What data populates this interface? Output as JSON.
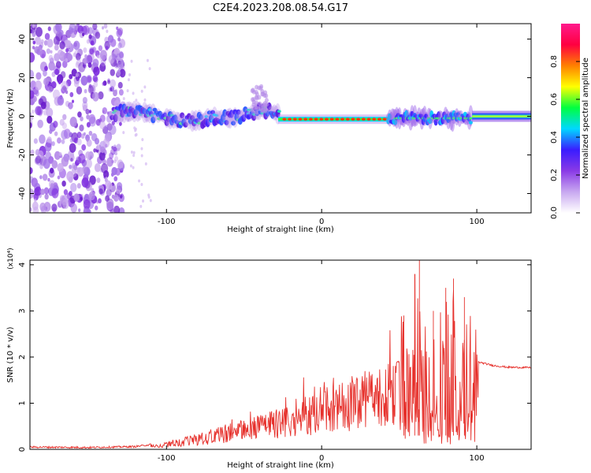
{
  "title": "C2E4.2023.208.08.54.G17",
  "chart_data": [
    {
      "type": "heatmap",
      "xlabel": "Height of straight line (km)",
      "ylabel": "Frequency (Hz)",
      "xlim": [
        -188,
        135
      ],
      "ylim": [
        -50,
        48
      ],
      "x_ticks": [
        -100,
        0,
        100
      ],
      "y_ticks": [
        -40,
        -20,
        0,
        20,
        40
      ],
      "colorbar": {
        "label": "Normalized spectral amplitude",
        "range": [
          0,
          1
        ],
        "ticks": [
          "0.0",
          "0.2",
          "0.4",
          "0.6",
          "0.8"
        ],
        "colors": [
          "#ffffff",
          "#c8a8f0",
          "#8a3ae6",
          "#3a1cff",
          "#00d8ff",
          "#00ff40",
          "#ffff00",
          "#ff8000",
          "#ff0040",
          "#ff1a8c"
        ]
      },
      "features": [
        {
          "name": "noise-scatter",
          "x_range": [
            -188,
            -128
          ],
          "freq_range": [
            -50,
            48
          ]
        },
        {
          "name": "wavy-band",
          "x_range": [
            -135,
            -28
          ],
          "freq_center": [
            -3,
            3
          ]
        },
        {
          "name": "rising-branch",
          "x_range": [
            -45,
            -35
          ],
          "freq_range": [
            0,
            18
          ]
        },
        {
          "name": "narrow-line",
          "x_range": [
            -28,
            43
          ],
          "freq": -1.5
        },
        {
          "name": "noisy-segment",
          "x_range": [
            43,
            97
          ],
          "freq": -1
        },
        {
          "name": "steady-line",
          "x_range": [
            97,
            135
          ],
          "freq": 0
        }
      ]
    },
    {
      "type": "line",
      "xlabel": "Height of straight line (km)",
      "ylabel": "SNR (10 * v/v)",
      "y_scale_label": "(x10⁴)",
      "xlim": [
        -188,
        135
      ],
      "ylim": [
        0,
        4.1
      ],
      "x_ticks": [
        -100,
        0,
        100
      ],
      "y_ticks": [
        0,
        1,
        2,
        3,
        4
      ],
      "series": [
        {
          "name": "SNR",
          "color": "#e6302b",
          "x": [
            -188,
            -150,
            -120,
            -100,
            -80,
            -60,
            -40,
            -20,
            0,
            20,
            40,
            50,
            60,
            70,
            80,
            90,
            100,
            110,
            120,
            135
          ],
          "y": [
            0.05,
            0.04,
            0.06,
            0.15,
            0.35,
            0.55,
            0.75,
            1.0,
            1.3,
            1.6,
            1.85,
            1.9,
            2.0,
            1.9,
            1.9,
            1.9,
            1.9,
            1.82,
            1.78,
            1.77
          ],
          "burst_peaks": [
            {
              "x": 53,
              "y": 2.9
            },
            {
              "x": 60,
              "y": 3.8
            },
            {
              "x": 63,
              "y": 4.1
            },
            {
              "x": 72,
              "y": 3.0
            },
            {
              "x": 80,
              "y": 3.5
            },
            {
              "x": 85,
              "y": 3.7
            },
            {
              "x": 92,
              "y": 3.3
            }
          ]
        }
      ]
    }
  ]
}
